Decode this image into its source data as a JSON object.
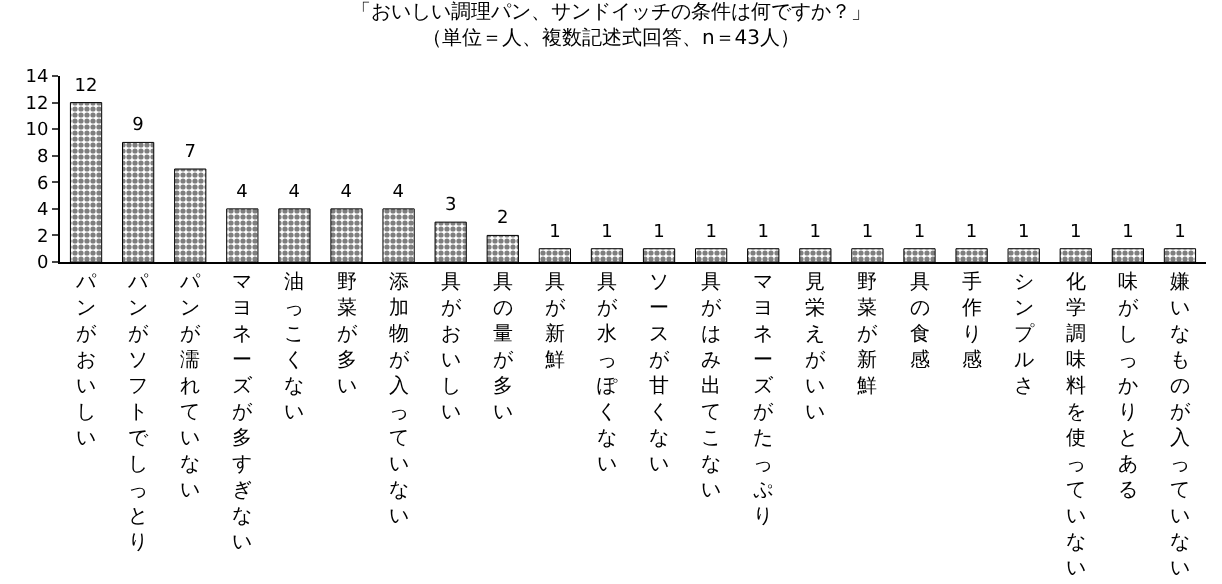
{
  "chart_data": {
    "type": "bar",
    "title": "「おいしい調理パン、サンドイッチの条件は何ですか？」",
    "subtitle": "（単位＝人、複数記述式回答、n＝43人）",
    "categories": [
      "パンがおいしい",
      "パンがソフトでしっとり",
      "パンが濡れていない",
      "マヨネーズが多すぎない",
      "油っこくない",
      "野菜が多い",
      "添加物が入っていない",
      "具がおいしい",
      "具の量が多い",
      "具が新鮮",
      "具が水っぽくない",
      "ソースが甘くない",
      "具がはみ出てこない",
      "マヨネーズがたっぷり",
      "見栄えがいい",
      "野菜が新鮮",
      "具の食感",
      "手作り感",
      "シンプルさ",
      "化学調味料を使っていない",
      "味がしっかりとある",
      "嫌いなものが入っていない"
    ],
    "values": [
      12,
      9,
      7,
      4,
      4,
      4,
      4,
      3,
      2,
      1,
      1,
      1,
      1,
      1,
      1,
      1,
      1,
      1,
      1,
      1,
      1,
      1
    ],
    "color": "#000000",
    "ylim": [
      0,
      14
    ],
    "yticks": [
      0,
      2,
      4,
      6,
      8,
      10,
      12,
      14
    ],
    "data_labels": true,
    "grid": false,
    "legend": false
  }
}
